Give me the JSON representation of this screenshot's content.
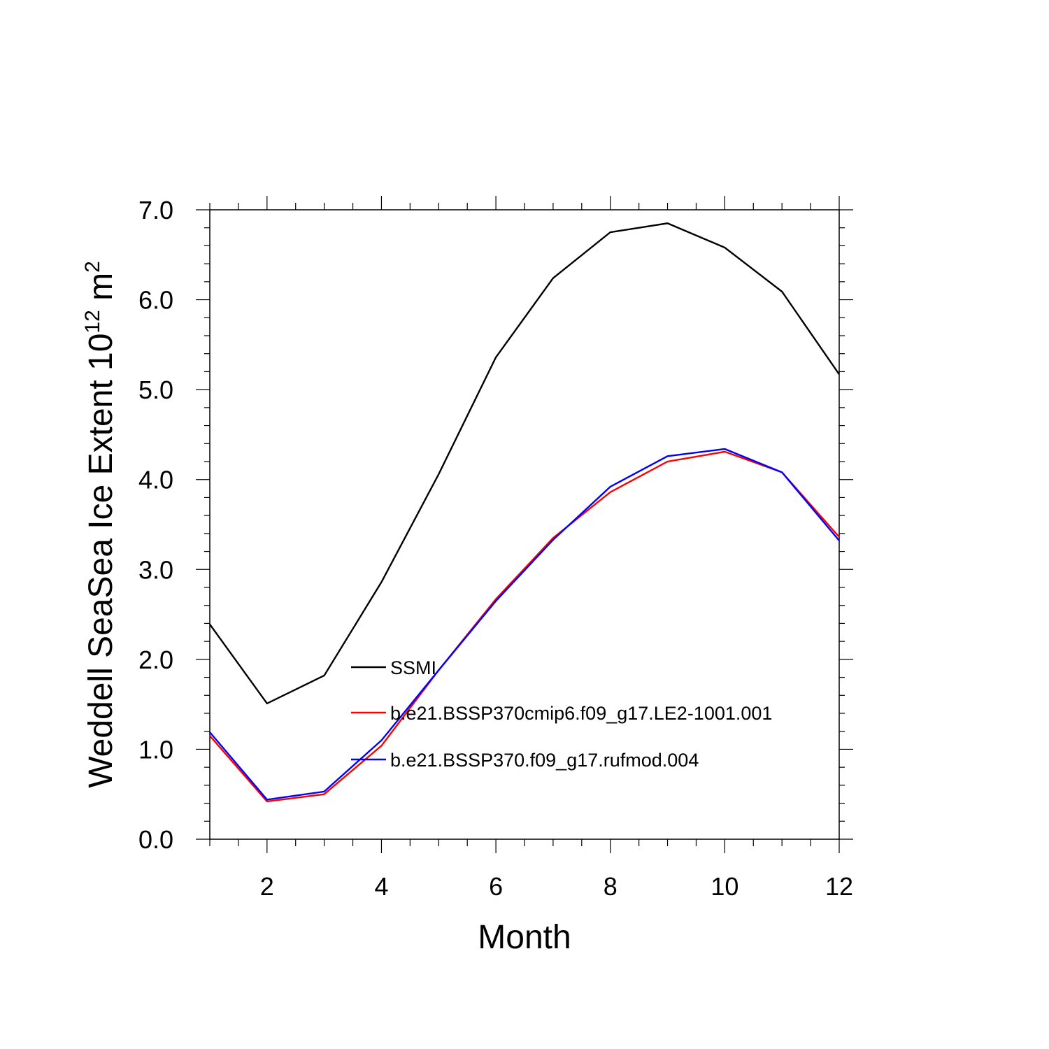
{
  "chart_data": {
    "type": "line",
    "title": "",
    "xlabel": "Month",
    "ylabel": "Weddell SeaSea Ice Extent 10",
    "ylabel_sup": "12",
    "ylabel_unit": " m",
    "ylabel_unit_sup": "2",
    "xlim": [
      1,
      12
    ],
    "ylim": [
      0,
      7
    ],
    "x_ticks": [
      2,
      4,
      6,
      8,
      10,
      12
    ],
    "x_tick_labels": [
      "2",
      "4",
      "6",
      "8",
      "10",
      "12"
    ],
    "y_ticks": [
      0,
      1,
      2,
      3,
      4,
      5,
      6,
      7
    ],
    "y_tick_labels": [
      "0.0",
      "1.0",
      "2.0",
      "3.0",
      "4.0",
      "5.0",
      "6.0",
      "7.0"
    ],
    "grid": false,
    "legend_position": "center",
    "x": [
      1,
      2,
      3,
      4,
      5,
      6,
      7,
      8,
      9,
      10,
      11,
      12
    ],
    "series": [
      {
        "name": "SSMI",
        "color": "#000000",
        "values": [
          2.39,
          1.51,
          1.82,
          2.86,
          4.06,
          5.36,
          6.24,
          6.75,
          6.85,
          6.58,
          6.09,
          5.17
        ]
      },
      {
        "name": "b.e21.BSSP370cmip6.f09_g17.LE2-1001.001",
        "color": "#ff0000",
        "values": [
          1.15,
          0.42,
          0.5,
          1.04,
          1.88,
          2.67,
          3.35,
          3.86,
          4.2,
          4.31,
          4.08,
          3.36
        ]
      },
      {
        "name": "b.e21.BSSP370.f09_g17.rufmod.004",
        "color": "#0000ff",
        "values": [
          1.19,
          0.44,
          0.53,
          1.1,
          1.88,
          2.65,
          3.33,
          3.92,
          4.26,
          4.34,
          4.08,
          3.32
        ]
      }
    ]
  }
}
